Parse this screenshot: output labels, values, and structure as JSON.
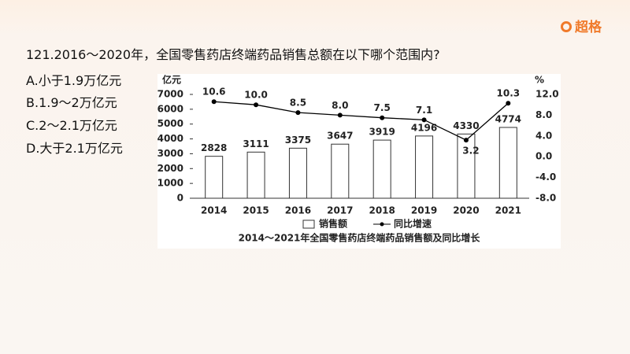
{
  "logo": "超格",
  "question": "121.2016～2020年，全国零售药店终端药品销售总额在以下哪个范围内?",
  "options": [
    "A.小于1.9万亿元",
    "B.1.9～2万亿元",
    "C.2～2.1万亿元",
    "D.大于2.1万亿元"
  ],
  "chart_data": {
    "type": "bar_line",
    "title": "2014～2021年全国零售药店终端药品销售额及同比增长",
    "y_label": "亿元",
    "y2_label": "%",
    "categories": [
      "2014",
      "2015",
      "2016",
      "2017",
      "2018",
      "2019",
      "2020",
      "2021"
    ],
    "series": [
      {
        "name": "销售额",
        "type": "bar",
        "color": "#ffffff",
        "values": [
          2828,
          3111,
          3375,
          3647,
          3919,
          4196,
          4330,
          4774
        ]
      },
      {
        "name": "同比增速",
        "type": "line",
        "axis": "y2",
        "color": "#000000",
        "values": [
          10.6,
          10.0,
          8.5,
          8.0,
          7.5,
          7.1,
          3.2,
          10.3
        ],
        "value_labels": [
          "10.6",
          "10.0",
          "8.5",
          "8.0",
          "7.5",
          "7.1",
          "3.2",
          "10.3"
        ]
      }
    ],
    "ylim": [
      0,
      7000
    ],
    "yticks": [
      0,
      1000,
      2000,
      3000,
      4000,
      5000,
      6000,
      7000
    ],
    "y2lim": [
      -8,
      12
    ],
    "y2ticks": [
      {
        "value": -8,
        "label": "-8.0"
      },
      {
        "value": -4,
        "label": "-4.0"
      },
      {
        "value": 0,
        "label": "0.0"
      },
      {
        "value": 4,
        "label": "4.0"
      },
      {
        "value": 8,
        "label": "8.0"
      },
      {
        "value": 12,
        "label": "12.0"
      }
    ]
  }
}
